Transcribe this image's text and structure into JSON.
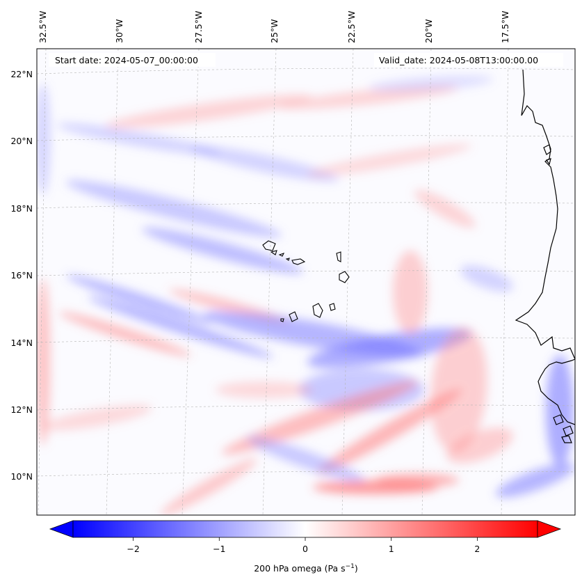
{
  "annotations": {
    "start": "Start date: 2024-05-07_00:00:00",
    "valid": "Valid_date: 2024-05-08T13:00:00.00"
  },
  "lon_labels": [
    "32.5°W",
    "30°W",
    "27.5°W",
    "25°W",
    "22.5°W",
    "20°W",
    "17.5°W"
  ],
  "lat_labels": [
    "22°N",
    "20°N",
    "18°N",
    "16°N",
    "14°N",
    "12°N",
    "10°N"
  ],
  "colorbar": {
    "label": "200 hPa omega (Pa s",
    "label_sup": "−1",
    "label_close": ")",
    "ticks": [
      "−2",
      "−1",
      "0",
      "1",
      "2"
    ],
    "tick_values": [
      -2,
      -1,
      0,
      1,
      2
    ],
    "range": [
      -2.7,
      2.7
    ],
    "colormap": "bwr",
    "extend": "both"
  },
  "colors": {
    "negative": "#0000ff",
    "zero": "#ffffff",
    "positive": "#ff0000",
    "coastline": "#000000",
    "gridline": "#b0b0b0"
  }
}
